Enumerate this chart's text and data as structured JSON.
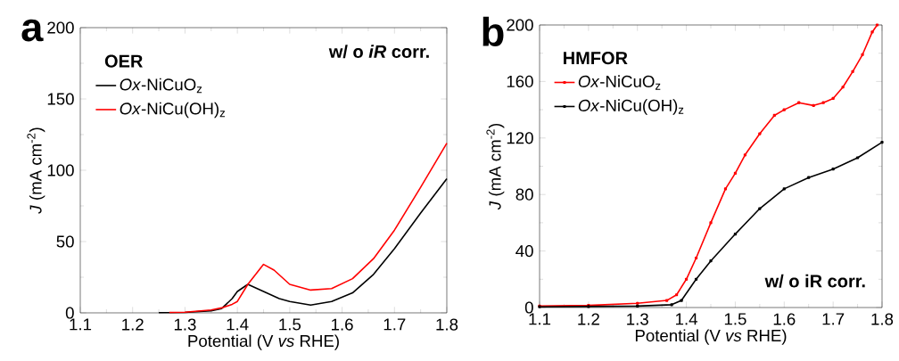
{
  "chart_data": [
    {
      "type": "line",
      "legend_title": "**OER**",
      "xlabel": "Potential (V *vs* RHE)",
      "ylabel": "*J* (mA cm$^{-2}$)",
      "annotations": [
        "**a**",
        "**w/ o *iR* corr.**"
      ],
      "xlim": [
        1.1,
        1.8
      ],
      "ylim": [
        0,
        200
      ],
      "xticks": [
        1.1,
        1.2,
        1.3,
        1.4,
        1.5,
        1.6,
        1.7,
        1.8
      ],
      "yticks": [
        0,
        50,
        100,
        150,
        200
      ],
      "legend": "top left",
      "grid": false,
      "marker": "none",
      "line_style": "solid",
      "series": [
        {
          "name": "*Ox*-NiCuO$_{z}$",
          "color": "#000000",
          "x": [
            1.25,
            1.3,
            1.35,
            1.37,
            1.39,
            1.4,
            1.42,
            1.45,
            1.48,
            1.5,
            1.54,
            1.58,
            1.62,
            1.66,
            1.7,
            1.75,
            1.8
          ],
          "values": [
            0.2,
            0.3,
            1.5,
            3,
            10,
            15,
            20,
            15,
            10,
            8,
            5.5,
            8,
            14,
            27,
            45,
            70,
            94
          ]
        },
        {
          "name": "*Ox*-NiCu(OH)$_{z}$",
          "color": "#ff0000",
          "x": [
            1.27,
            1.3,
            1.35,
            1.37,
            1.39,
            1.4,
            1.42,
            1.45,
            1.47,
            1.5,
            1.54,
            1.58,
            1.62,
            1.66,
            1.7,
            1.75,
            1.8
          ],
          "values": [
            0.3,
            0.5,
            2,
            3.5,
            6,
            8,
            20,
            34,
            30,
            20,
            16,
            17,
            24,
            38,
            58,
            88,
            119
          ]
        }
      ]
    },
    {
      "type": "line",
      "legend_title": "**HMFOR**",
      "xlabel": "Potential (V *vs* RHE)",
      "ylabel": "*J* (mA cm$^{-2}$)",
      "annotations": [
        "**b**",
        "**w/ o iR corr.**"
      ],
      "xlim": [
        1.1,
        1.8
      ],
      "ylim": [
        0,
        200
      ],
      "xticks": [
        1.1,
        1.2,
        1.3,
        1.4,
        1.5,
        1.6,
        1.7,
        1.8
      ],
      "yticks": [
        0,
        40,
        80,
        120,
        160,
        200
      ],
      "legend": "top left",
      "grid": false,
      "marker": "square",
      "line_style": "solid",
      "series": [
        {
          "name": "*Ox*-NiCuO$_{z}$",
          "color": "#ff0000",
          "x": [
            1.1,
            1.2,
            1.3,
            1.36,
            1.38,
            1.4,
            1.42,
            1.45,
            1.48,
            1.5,
            1.52,
            1.55,
            1.58,
            1.6,
            1.63,
            1.66,
            1.68,
            1.7,
            1.72,
            1.74,
            1.76,
            1.78,
            1.79
          ],
          "values": [
            1,
            1.5,
            3,
            5,
            9,
            20,
            35,
            60,
            84,
            95,
            108,
            123,
            136,
            140,
            145,
            143,
            145,
            148,
            156,
            167,
            179,
            195,
            200
          ]
        },
        {
          "name": "*Ox*-NiCu(OH)$_{z}$",
          "color": "#000000",
          "x": [
            1.1,
            1.2,
            1.3,
            1.37,
            1.39,
            1.42,
            1.45,
            1.5,
            1.55,
            1.6,
            1.65,
            1.7,
            1.75,
            1.8
          ],
          "values": [
            0.5,
            0.7,
            1,
            2,
            5,
            20,
            33,
            52,
            70,
            84,
            92,
            98,
            106,
            117
          ]
        }
      ]
    }
  ]
}
